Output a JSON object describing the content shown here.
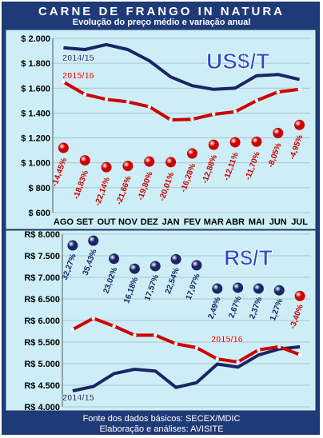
{
  "header": {
    "title": "CARNE DE FRANGO IN NATURA",
    "subtitle": "Evolução do preço médio e variação anual"
  },
  "footer": {
    "line1": "Fonte dos dados básicos: SECEX/MDIC",
    "line2": "Elaboração e análises: AVISITE"
  },
  "colors": {
    "background": "#1f3a78",
    "plot_bg": "#cdeef6",
    "series_2014_15": "#1a2466",
    "series_2015_16": "#cc0000",
    "bubble": "#cc0000",
    "bubble_r": "#1a2466",
    "currency_text": "#2a4cc7"
  },
  "chart_data": [
    {
      "type": "line",
      "currency_label": "US$/T",
      "categories": [
        "AGO",
        "SET",
        "OUT",
        "NOV",
        "DEZ",
        "JAN",
        "FEV",
        "MAR",
        "ABR",
        "MAI",
        "JUN",
        "JUL"
      ],
      "ylim": [
        600,
        2000
      ],
      "yticks": [
        600,
        800,
        1000,
        1200,
        1400,
        1600,
        1800,
        2000
      ],
      "ytick_labels": [
        "$ 600",
        "$ 800",
        "$ 1.000",
        "$ 1.200",
        "$ 1.400",
        "$ 1.600",
        "$ 1.800",
        "$ 2.000"
      ],
      "series": [
        {
          "name": "2014/15",
          "values": [
            1925,
            1910,
            1950,
            1910,
            1820,
            1690,
            1620,
            1590,
            1600,
            1700,
            1710,
            1670
          ]
        },
        {
          "name": "2015/16",
          "values": [
            1650,
            1550,
            1510,
            1490,
            1450,
            1345,
            1350,
            1390,
            1410,
            1500,
            1570,
            1590
          ]
        }
      ],
      "variation": {
        "labels": [
          "-14,45%",
          "-18,83%",
          "-22,14%",
          "-21,66%",
          "-19,80%",
          "-20,01%",
          "-16,28%",
          "-12,88%",
          "-12,11%",
          "-11,70%",
          "-8,05%",
          "-4,95%"
        ],
        "marker_y": [
          1120,
          1020,
          965,
          975,
          1010,
          1005,
          1075,
          1145,
          1165,
          1170,
          1240,
          1305
        ]
      }
    },
    {
      "type": "line",
      "currency_label": "R$/T",
      "categories": [
        "AGO",
        "SET",
        "OUT",
        "NOV",
        "DEZ",
        "JAN",
        "FEV",
        "MAR",
        "ABR",
        "MAI",
        "JUN",
        "JUL"
      ],
      "ylim": [
        4000,
        8000
      ],
      "yticks": [
        4000,
        4500,
        5000,
        5500,
        6000,
        6500,
        7000,
        7500,
        8000
      ],
      "ytick_labels": [
        "R$ 4.000",
        "R$ 4.500",
        "R$ 5.000",
        "R$ 5.500",
        "R$ 6.000",
        "R$ 6.500",
        "R$ 7.000",
        "R$ 7.500",
        "R$ 8.000"
      ],
      "series": [
        {
          "name": "2014/15",
          "values": [
            4370,
            4470,
            4770,
            4870,
            4830,
            4450,
            4560,
            4990,
            4920,
            5200,
            5340,
            5390
          ]
        },
        {
          "name": "2015/16",
          "values": [
            5790,
            6050,
            5870,
            5660,
            5660,
            5460,
            5370,
            5110,
            5040,
            5320,
            5390,
            5210
          ]
        }
      ],
      "variation": {
        "labels": [
          "32,27%",
          "35,43%",
          "23,02%",
          "16,18%",
          "17,57%",
          "22,54%",
          "17,97%",
          "2,49%",
          "2,67%",
          "2,37%",
          "1,27%",
          "-3,40%"
        ],
        "marker_y": [
          7740,
          7850,
          7430,
          7200,
          7260,
          7420,
          7280,
          6740,
          6760,
          6740,
          6700,
          6570
        ]
      }
    }
  ]
}
